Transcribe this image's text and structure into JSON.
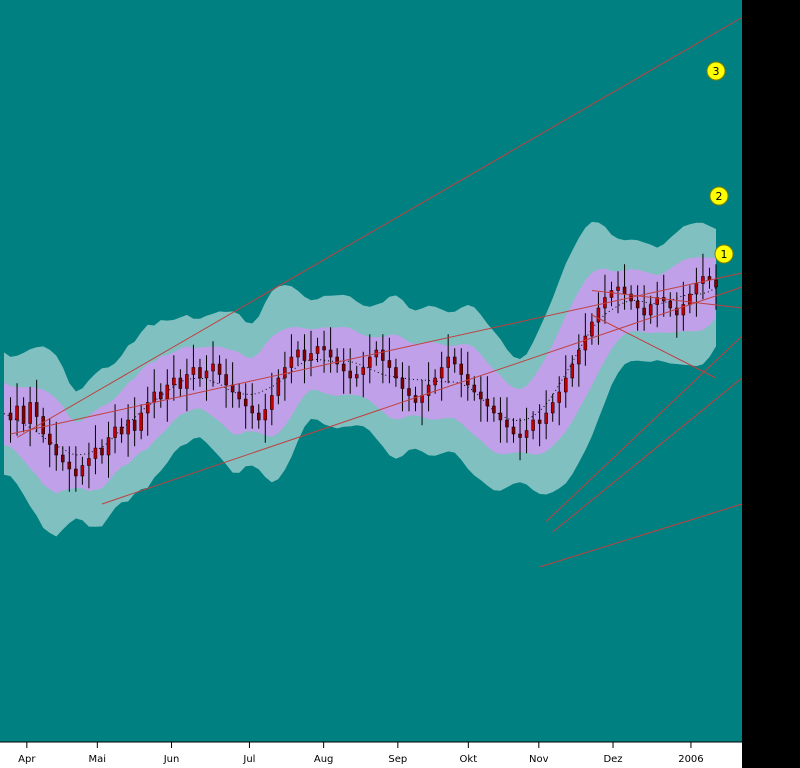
{
  "chart_data": {
    "type": "candlestick",
    "title": "",
    "xlabel": "",
    "ylabel": "",
    "colors": {
      "background": "#008080",
      "axis_background": "#ffffff",
      "outer_band": "#80c0c0",
      "inner_band": "#c0a0e8",
      "candle_up": "#c00000",
      "candle_down": "#800000",
      "channel_lines": "#c04040",
      "markers": "#ffff00",
      "right_panel": "#000000"
    },
    "x_ticks": [
      {
        "label": "Apr",
        "pos": 0.02
      },
      {
        "label": "Mai",
        "pos": 0.115
      },
      {
        "label": "Jun",
        "pos": 0.215
      },
      {
        "label": "Jul",
        "pos": 0.32
      },
      {
        "label": "Aug",
        "pos": 0.42
      },
      {
        "label": "Sep",
        "pos": 0.52
      },
      {
        "label": "Okt",
        "pos": 0.615
      },
      {
        "label": "Nov",
        "pos": 0.71
      },
      {
        "label": "Dez",
        "pos": 0.81
      },
      {
        "label": "2006",
        "pos": 0.915
      }
    ],
    "markers": [
      "1",
      "2",
      "3"
    ],
    "price_path": [
      0.42,
      0.4,
      0.44,
      0.39,
      0.45,
      0.41,
      0.36,
      0.33,
      0.3,
      0.28,
      0.26,
      0.24,
      0.27,
      0.29,
      0.32,
      0.3,
      0.35,
      0.38,
      0.36,
      0.4,
      0.37,
      0.42,
      0.45,
      0.48,
      0.46,
      0.5,
      0.52,
      0.49,
      0.53,
      0.55,
      0.52,
      0.54,
      0.56,
      0.53,
      0.5,
      0.48,
      0.46,
      0.44,
      0.42,
      0.4,
      0.43,
      0.47,
      0.52,
      0.55,
      0.58,
      0.6,
      0.57,
      0.59,
      0.61,
      0.6,
      0.58,
      0.56,
      0.54,
      0.52,
      0.53,
      0.55,
      0.58,
      0.6,
      0.57,
      0.55,
      0.52,
      0.49,
      0.47,
      0.45,
      0.47,
      0.5,
      0.52,
      0.55,
      0.58,
      0.56,
      0.53,
      0.5,
      0.48,
      0.46,
      0.44,
      0.42,
      0.4,
      0.38,
      0.36,
      0.35,
      0.37,
      0.4,
      0.39,
      0.42,
      0.45,
      0.48,
      0.52,
      0.56,
      0.6,
      0.64,
      0.68,
      0.72,
      0.75,
      0.77,
      0.78,
      0.76,
      0.74,
      0.72,
      0.7,
      0.73,
      0.75,
      0.74,
      0.72,
      0.7,
      0.73,
      0.76,
      0.79,
      0.81,
      0.8,
      0.78
    ]
  }
}
